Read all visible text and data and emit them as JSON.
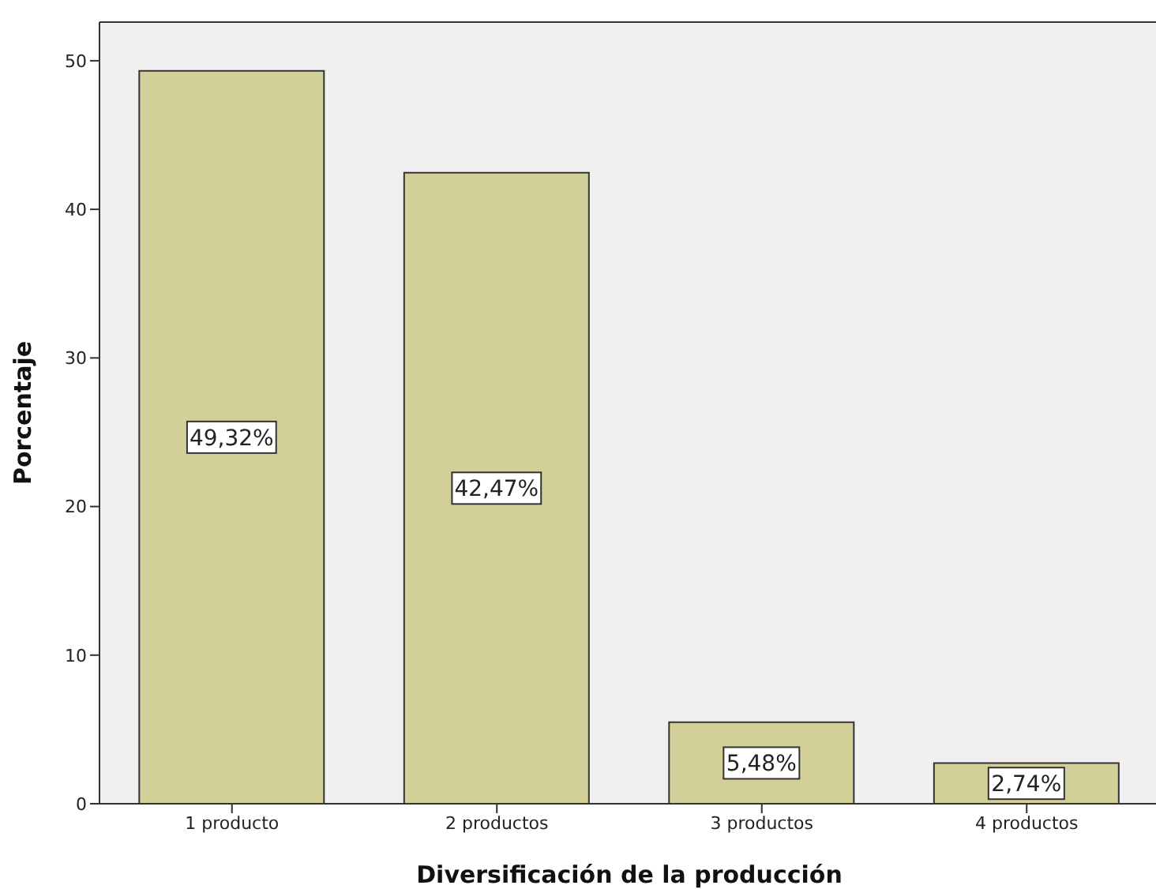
{
  "chart_data": {
    "type": "bar",
    "xlabel": "Diversificación de la producción",
    "ylabel": "Porcentaje",
    "categories": [
      "1 producto",
      "2 productos",
      "3 productos",
      "4 productos"
    ],
    "values": [
      49.32,
      42.47,
      5.48,
      2.74
    ],
    "value_labels": [
      "49,32%",
      "42,47%",
      "5,48%",
      "2,74%"
    ],
    "color": "#d3cf98",
    "ylim": [
      0,
      52.6
    ],
    "yticks": [
      0,
      10,
      20,
      30,
      40,
      50
    ]
  }
}
